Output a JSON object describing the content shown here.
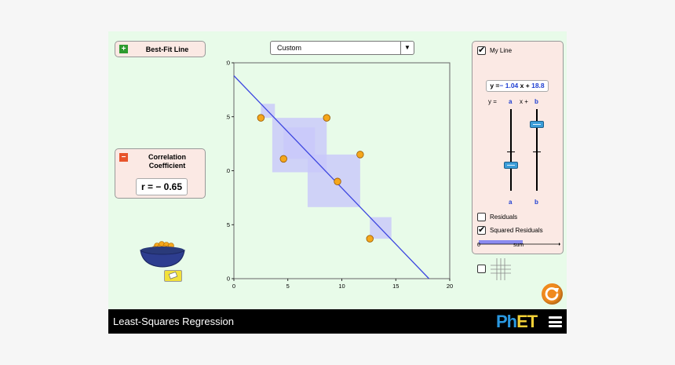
{
  "app": {
    "title": "Least-Squares Regression",
    "logo": "PhET"
  },
  "best_fit_panel": {
    "label": "Best-Fit Line",
    "toggle_icon": "plus-icon"
  },
  "correlation_panel": {
    "label_line1": "Correlation",
    "label_line2": "Coefficient",
    "value": "r = − 0.65",
    "toggle_icon": "minus-icon"
  },
  "dataset_dropdown": {
    "selected": "Custom"
  },
  "my_line_panel": {
    "label": "My Line",
    "checked": true,
    "equation": {
      "prefix": "y =",
      "slope": "− 1.04",
      "x_plus": "x +",
      "intercept": "18.8"
    },
    "slider_header": {
      "y_eq": "y =",
      "a": "a",
      "x_plus": "x +",
      "b": "b"
    },
    "slider_a_label": "a",
    "slider_b_label": "b",
    "slider_a_value": -1.04,
    "slider_b_value": 18.8,
    "residuals_label": "Residuals",
    "residuals_checked": false,
    "squared_residuals_label": "Squared Residuals",
    "squared_residuals_checked": true,
    "sum_axis_zero": "0",
    "sum_axis_label": "sum"
  },
  "grid_toggle": {
    "checked": false,
    "icon": "grid-icon"
  },
  "colors": {
    "background": "#e8fbe9",
    "panel": "#fbe9e4",
    "line": "#3d47e0",
    "point": "#f5a71c",
    "square": "#c8c8fa",
    "accent_blue": "#1f3fd2"
  },
  "chart_data": {
    "type": "scatter",
    "x_ticks": [
      "0",
      "5",
      "10",
      "15",
      "20"
    ],
    "y_ticks": [
      "0",
      "5",
      "10",
      "15",
      "20"
    ],
    "xlim": [
      0,
      20
    ],
    "ylim": [
      0,
      20
    ],
    "points": [
      {
        "x": 2.5,
        "y": 14.9
      },
      {
        "x": 4.6,
        "y": 11.1
      },
      {
        "x": 8.6,
        "y": 14.9
      },
      {
        "x": 9.6,
        "y": 9.0
      },
      {
        "x": 11.7,
        "y": 11.5
      },
      {
        "x": 12.6,
        "y": 3.7
      }
    ],
    "line": {
      "slope": -1.04,
      "intercept": 18.8
    },
    "squared_residuals": true
  }
}
